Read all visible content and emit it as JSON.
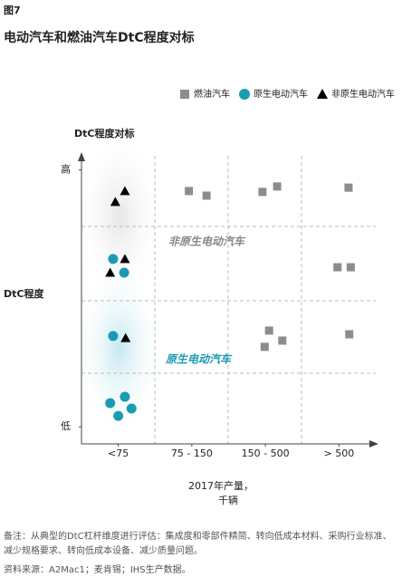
{
  "figure_label": "图7",
  "chart_data": {
    "type": "scatter",
    "title": "电动汽车和燃油汽车DtC程度对标",
    "y_title": "DtC程度对标",
    "y_label": "DtC程度",
    "x_label": "2017年产量，",
    "x_unit": "千辆",
    "xlim": [
      0,
      4
    ],
    "xticks": [
      {
        "value": 0.5,
        "label": "<75"
      },
      {
        "value": 1.5,
        "label": "75 - 150"
      },
      {
        "value": 2.5,
        "label": "150 - 500"
      },
      {
        "value": 3.5,
        "label": "> 500"
      }
    ],
    "ylim": [
      0,
      10
    ],
    "yticks": [
      {
        "value": 9.6,
        "label": "高"
      },
      {
        "value": 0.6,
        "label": "低"
      }
    ],
    "annotations": [
      "非原生电动汽车",
      "原生电动汽车"
    ],
    "series": [
      {
        "name": "燃油汽车",
        "color": "#8c8c8c",
        "marker": "square",
        "x": [
          1.46,
          1.7,
          2.46,
          2.66,
          3.63,
          3.48,
          3.66,
          2.55,
          2.73,
          2.49,
          3.64
        ],
        "values": [
          8.86,
          8.7,
          8.83,
          9.02,
          8.98,
          6.19,
          6.19,
          3.97,
          3.62,
          3.4,
          3.84
        ]
      },
      {
        "name": "原生电动汽车",
        "color": "#1a9bb3",
        "marker": "circle",
        "x": [
          0.43,
          0.58,
          0.43,
          0.59,
          0.39,
          0.68,
          0.5
        ],
        "values": [
          6.48,
          6.0,
          3.78,
          1.65,
          1.43,
          1.24,
          0.98
        ]
      },
      {
        "name": "非原生电动汽车",
        "color": "#000000",
        "marker": "triangle",
        "x": [
          0.59,
          0.46,
          0.59,
          0.39,
          0.6
        ],
        "values": [
          8.86,
          8.48,
          6.48,
          6.0,
          3.71
        ]
      }
    ]
  },
  "notes": [
    "备注：从典型的DtC杠杆维度进行评估：集成度和零部件精简、转向低成本材料、采购行业标准、减少规格要求、转向低成本设备、减少质量问题。",
    "资料来源：A2Mac1；麦肯锡；IHS生产数据。"
  ]
}
